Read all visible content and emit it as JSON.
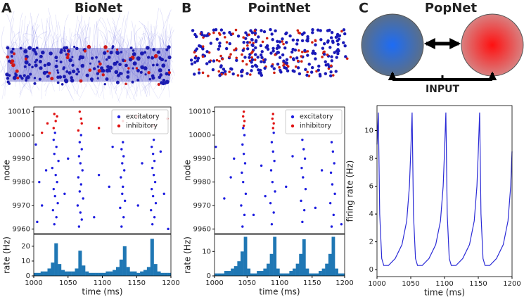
{
  "panels": [
    {
      "letter": "A",
      "title": "BioNet"
    },
    {
      "letter": "B",
      "title": "PointNet"
    },
    {
      "letter": "C",
      "title": "PopNet"
    }
  ],
  "diagram": {
    "label": "INPUT"
  },
  "chart_data": [
    {
      "type": "scatter",
      "ylabel": "node",
      "xlim": [
        1000,
        1200
      ],
      "ylim": [
        9958,
        10012
      ],
      "yticks": [
        9960,
        9970,
        9980,
        9990,
        10000,
        10010
      ],
      "legend": "upper right",
      "series": [
        {
          "name": "excitatory",
          "color": "#1f1fe0",
          "x": [
            1030,
            1033,
            1028,
            1035,
            1031,
            1029,
            1034,
            1032,
            1027,
            1036,
            1030,
            1033,
            1029,
            1031,
            1066,
            1070,
            1068,
            1064,
            1072,
            1067,
            1069,
            1065,
            1071,
            1068,
            1066,
            1070,
            1067,
            1069,
            1128,
            1131,
            1126,
            1133,
            1129,
            1130,
            1127,
            1132,
            1129,
            1131,
            1128,
            1130,
            1173,
            1176,
            1171,
            1178,
            1174,
            1172,
            1177,
            1175,
            1173,
            1176,
            1174,
            1172,
            1175,
            1003,
            1008,
            1012,
            1018,
            1045,
            1050,
            1088,
            1095,
            1110,
            1115,
            1152,
            1158,
            1190,
            1196,
            1005,
            1185
          ],
          "values": [
            9962,
            9965,
            9968,
            9971,
            9974,
            9977,
            9980,
            9983,
            9986,
            9989,
            9992,
            9995,
            9998,
            10001,
            9961,
            9964,
            9967,
            9970,
            9973,
            9976,
            9979,
            9982,
            9985,
            9988,
            9991,
            9994,
            9997,
            10000,
            9961,
            9965,
            9969,
            9972,
            9975,
            9978,
            9982,
            9985,
            9988,
            9991,
            9994,
            9997,
            9962,
            9965,
            9968,
            9971,
            9974,
            9977,
            9980,
            9983,
            9986,
            9989,
            9992,
            9995,
            9998,
            9996,
            9980,
            9970,
            9985,
            9975,
            9990,
            9965,
            9983,
            9978,
            9995,
            9970,
            9988,
            9975,
            9960,
            9963,
            9993
          ]
        },
        {
          "name": "inhibitory",
          "color": "#e01010",
          "x": [
            1030,
            1032,
            1029,
            1034,
            1067,
            1070,
            1065,
            1069,
            1020,
            1012,
            1095,
            1130,
            1175,
            1150,
            1195
          ],
          "values": [
            10009,
            10006,
            10003,
            10008,
            10010,
            10005,
            10002,
            10007,
            10005,
            10001,
            10003,
            10006,
            10004,
            10008,
            10007
          ]
        }
      ]
    },
    {
      "type": "histogram",
      "xlabel": "time (ms)",
      "ylabel": "rate (Hz)",
      "color": "#1f77b4",
      "xlim": [
        1000,
        1200
      ],
      "xticks": [
        1000,
        1050,
        1100,
        1150,
        1200
      ],
      "ylim": [
        0,
        28
      ],
      "yticks": [
        0,
        10,
        20
      ],
      "bins": [
        1000,
        1005,
        1010,
        1015,
        1020,
        1025,
        1030,
        1035,
        1040,
        1045,
        1050,
        1055,
        1060,
        1065,
        1070,
        1075,
        1080,
        1085,
        1090,
        1095,
        1100,
        1105,
        1110,
        1115,
        1120,
        1125,
        1130,
        1135,
        1140,
        1145,
        1150,
        1155,
        1160,
        1165,
        1170,
        1175,
        1180,
        1185,
        1190,
        1195,
        1200
      ],
      "values": [
        2,
        2,
        3,
        3,
        5,
        9,
        22,
        8,
        4,
        3,
        3,
        3,
        5,
        17,
        7,
        3,
        2,
        2,
        2,
        2,
        2,
        3,
        3,
        4,
        6,
        11,
        20,
        6,
        3,
        3,
        2,
        3,
        4,
        6,
        25,
        8,
        3,
        2,
        2,
        2
      ]
    },
    {
      "type": "scatter",
      "ylabel": "node",
      "xlim": [
        1000,
        1200
      ],
      "ylim": [
        9958,
        10012
      ],
      "yticks": [
        9960,
        9970,
        9980,
        9990,
        10000,
        10010
      ],
      "legend": "upper right",
      "series": [
        {
          "name": "excitatory",
          "color": "#1f1fe0",
          "x": [
            1043,
            1046,
            1041,
            1048,
            1044,
            1042,
            1047,
            1045,
            1043,
            1046,
            1044,
            1088,
            1091,
            1086,
            1093,
            1089,
            1087,
            1092,
            1090,
            1088,
            1091,
            1135,
            1138,
            1133,
            1140,
            1136,
            1134,
            1139,
            1137,
            1135,
            1180,
            1183,
            1178,
            1185,
            1181,
            1179,
            1184,
            1182,
            1180,
            1002,
            1015,
            1025,
            1060,
            1072,
            1110,
            1120,
            1155,
            1165,
            1195,
            1030,
            1078
          ],
          "values": [
            9961,
            9966,
            9970,
            9975,
            9980,
            9984,
            9988,
            9992,
            9996,
            10000,
            10003,
            9962,
            9967,
            9971,
            9976,
            9980,
            9985,
            9989,
            9993,
            9997,
            10001,
            9963,
            9968,
            9972,
            9977,
            9982,
            9986,
            9990,
            9994,
            9998,
            9961,
            9966,
            9971,
            9975,
            9979,
            9984,
            9988,
            9993,
            9997,
            9995,
            9973,
            9982,
            9966,
            9987,
            9978,
            9991,
            9969,
            9985,
            9962,
            9990,
            9974
          ]
        },
        {
          "name": "inhibitory",
          "color": "#e01010",
          "x": [
            1045,
            1046,
            1044,
            1045,
            1090,
            1091,
            1089,
            1090
          ],
          "values": [
            10004,
            10006,
            10008,
            10010,
            10003,
            10005,
            10007,
            10009
          ]
        }
      ]
    },
    {
      "type": "histogram",
      "xlabel": "time (ms)",
      "ylabel": "rate (Hz)",
      "color": "#1f77b4",
      "xlim": [
        1000,
        1200
      ],
      "xticks": [
        1000,
        1050,
        1100,
        1150,
        1200
      ],
      "ylim": [
        0,
        17
      ],
      "yticks": [
        0,
        10
      ],
      "bins": [
        1000,
        1005,
        1010,
        1015,
        1020,
        1025,
        1030,
        1035,
        1040,
        1045,
        1050,
        1055,
        1060,
        1065,
        1070,
        1075,
        1080,
        1085,
        1090,
        1095,
        1100,
        1105,
        1110,
        1115,
        1120,
        1125,
        1130,
        1135,
        1140,
        1145,
        1150,
        1155,
        1160,
        1165,
        1170,
        1175,
        1180,
        1185,
        1190,
        1195,
        1200
      ],
      "values": [
        1,
        1,
        1,
        2,
        2,
        3,
        4,
        6,
        10,
        16,
        3,
        1,
        1,
        2,
        2,
        3,
        5,
        9,
        16,
        3,
        1,
        1,
        1,
        2,
        3,
        5,
        9,
        15,
        3,
        1,
        1,
        1,
        2,
        3,
        5,
        9,
        16,
        3,
        1,
        1
      ]
    },
    {
      "type": "line",
      "xlabel": "time (ms)",
      "ylabel": "firing rate (Hz)",
      "color": "#2b2bd6",
      "xlim": [
        1000,
        1200
      ],
      "xticks": [
        1000,
        1050,
        1100,
        1150,
        1200
      ],
      "ylim": [
        -0.5,
        11.8
      ],
      "yticks": [
        0,
        2,
        4,
        6,
        8,
        10
      ],
      "x": [
        1000,
        1002,
        1004,
        1007,
        1010,
        1017,
        1027,
        1037,
        1044,
        1048,
        1050,
        1052,
        1054,
        1057,
        1060,
        1067,
        1077,
        1087,
        1094,
        1098,
        1100,
        1102,
        1104,
        1107,
        1110,
        1117,
        1127,
        1137,
        1144,
        1148,
        1150,
        1152,
        1154,
        1157,
        1160,
        1167,
        1177,
        1187,
        1194,
        1198,
        1200
      ],
      "values": [
        9,
        11.3,
        4,
        0.8,
        0.3,
        0.3,
        0.8,
        1.8,
        3.5,
        6,
        8.5,
        11.3,
        4,
        0.8,
        0.3,
        0.3,
        0.8,
        1.8,
        3.5,
        6,
        8.5,
        11.3,
        4,
        0.8,
        0.3,
        0.3,
        0.8,
        1.8,
        3.5,
        6,
        8.5,
        11.3,
        4,
        0.8,
        0.3,
        0.3,
        0.8,
        1.8,
        3.5,
        6,
        8.5
      ]
    }
  ]
}
